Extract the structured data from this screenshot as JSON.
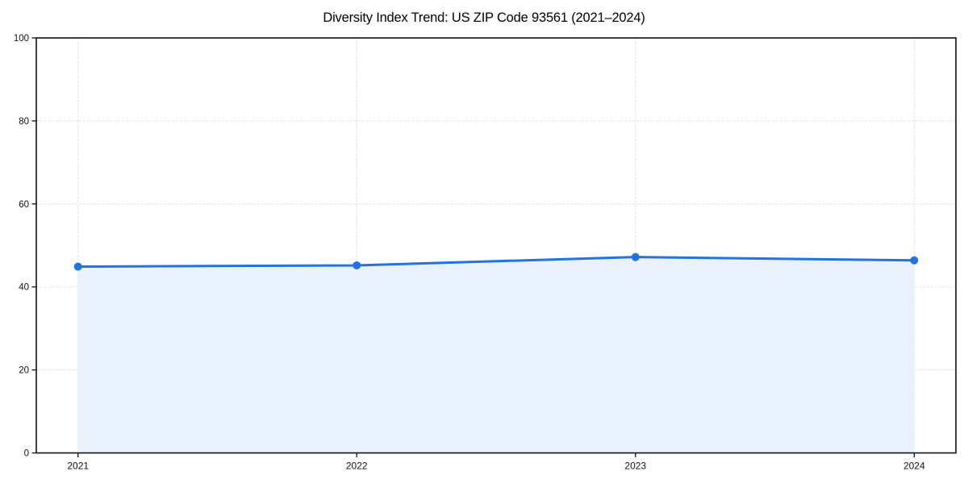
{
  "chart_data": {
    "type": "area",
    "title": "Diversity Index Trend: US ZIP Code 93561 (2021–2024)",
    "x": [
      2021,
      2022,
      2023,
      2024
    ],
    "series": [
      {
        "name": "Diversity Index",
        "values": [
          44.9,
          45.2,
          47.2,
          46.4
        ]
      }
    ],
    "xlabel": "",
    "ylabel": "",
    "ylim": [
      0,
      100
    ],
    "yticks": [
      0,
      20,
      40,
      60,
      80,
      100
    ],
    "grid": true,
    "grid_style": "dashed",
    "legend_position": "none",
    "colors": {
      "line": "#2272e3",
      "marker": "#2272e3",
      "fill": "#e9f1fc",
      "grid": "#e2e2e2",
      "axis": "#111111",
      "text": "#111111",
      "background": "#ffffff"
    }
  }
}
